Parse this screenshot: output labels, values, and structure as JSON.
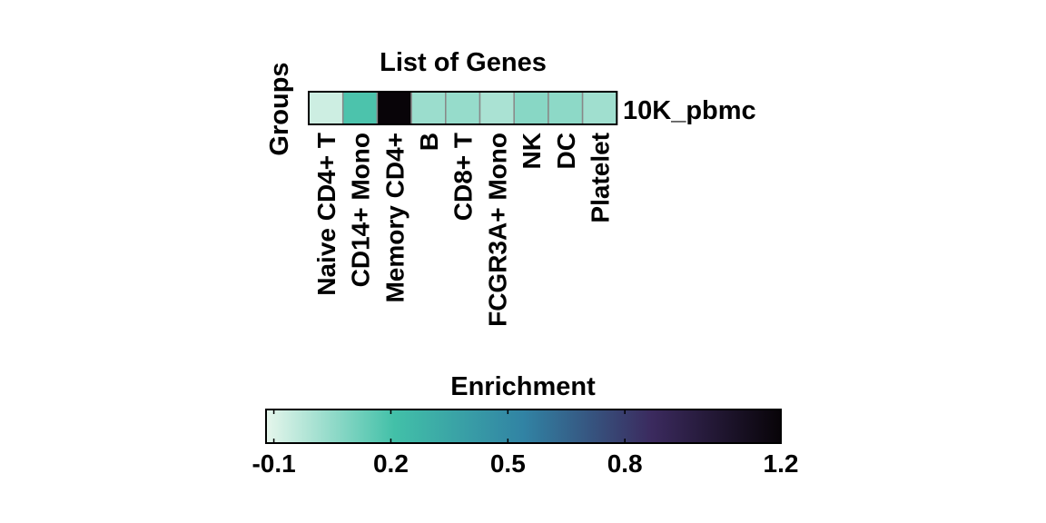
{
  "chart_data": {
    "type": "heatmap",
    "title": "List of Genes",
    "ylabel": "Groups",
    "rows": [
      "10K_pbmc"
    ],
    "columns": [
      "Naive CD4+ T",
      "CD14+ Mono",
      "Memory CD4+",
      "B",
      "CD8+ T",
      "FCGR3A+ Mono",
      "NK",
      "DC",
      "Platelet"
    ],
    "values": [
      [
        -0.07,
        0.19,
        1.2,
        0.03,
        0.04,
        0.0,
        0.07,
        0.06,
        0.02
      ]
    ],
    "colorbar": {
      "label": "Enrichment",
      "range": [
        -0.12,
        1.2
      ],
      "ticks": [
        -0.1,
        0.2,
        0.5,
        0.8,
        1.2
      ],
      "tick_labels": [
        "-0.1",
        "0.2",
        "0.5",
        "0.8",
        "1.2"
      ],
      "colors": [
        "#e6f6ec",
        "#42c0a8",
        "#3183a4",
        "#3b2a5e",
        "#080408"
      ]
    }
  }
}
